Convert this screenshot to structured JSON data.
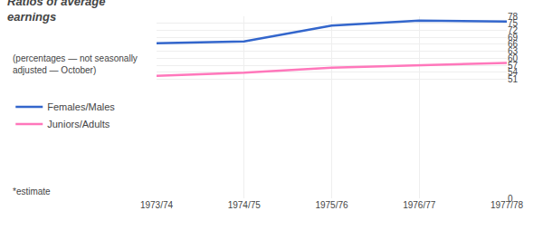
{
  "chart_data": {
    "type": "line",
    "title": "Ratios of average\nearnings",
    "subtitle": "(percentages — not seasonally\nadjusted — October)",
    "categories": [
      "1973/74",
      "1974/75",
      "1975/76",
      "1976/77",
      "1977/78"
    ],
    "series": [
      {
        "name": "Females/Males",
        "color": "#3366cc",
        "values": [
          66.5,
          67.2,
          74.0,
          76.2,
          75.8
        ]
      },
      {
        "name": "Juniors/Adults",
        "color": "#ff77bb",
        "values": [
          52.5,
          53.8,
          56.0,
          57.0,
          58.0
        ]
      }
    ],
    "ylim": [
      0,
      78
    ],
    "yticks": [
      78,
      75,
      72,
      69,
      66,
      63,
      60,
      57,
      54,
      51,
      0
    ],
    "grid": true,
    "legend": "left",
    "annotations": [
      "*estimate"
    ]
  }
}
